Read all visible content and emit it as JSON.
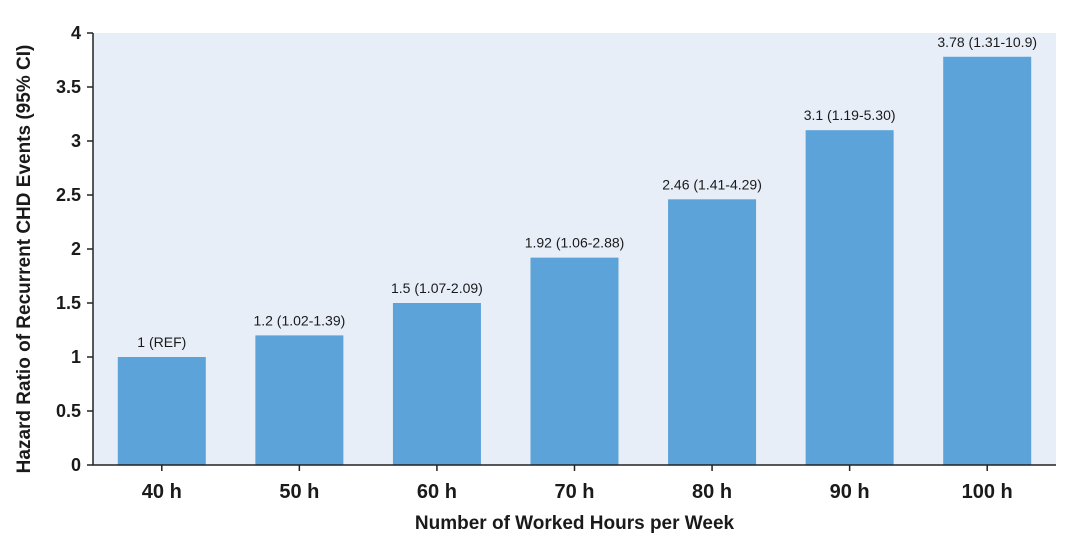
{
  "chart_data": {
    "type": "bar",
    "title": "",
    "xlabel": "Number of Worked Hours per Week",
    "ylabel": "Hazard Ratio of Recurrent CHD Events (95% CI)",
    "categories": [
      "40 h",
      "50 h",
      "60 h",
      "70 h",
      "80 h",
      "90 h",
      "100 h"
    ],
    "values": [
      1,
      1.2,
      1.5,
      1.92,
      2.46,
      3.1,
      3.78
    ],
    "data_labels": [
      "1 (REF)",
      "1.2 (1.02-1.39)",
      "1.5 (1.07-2.09)",
      "1.92 (1.06-2.88)",
      "2.46 (1.41-4.29)",
      "3.1 (1.19-5.30)",
      "3.78 (1.31-10.9)"
    ],
    "ylim": [
      0,
      4
    ],
    "yticks": [
      0,
      0.5,
      1,
      1.5,
      2,
      2.5,
      3,
      3.5,
      4
    ],
    "ytick_labels": [
      "0",
      "0.5",
      "1",
      "1.5",
      "2",
      "2.5",
      "3",
      "3.5",
      "4"
    ],
    "grid": false,
    "colors": {
      "bar": "#5ba3d9",
      "plot_background": "#e8eef8",
      "axis": "#222222"
    }
  }
}
